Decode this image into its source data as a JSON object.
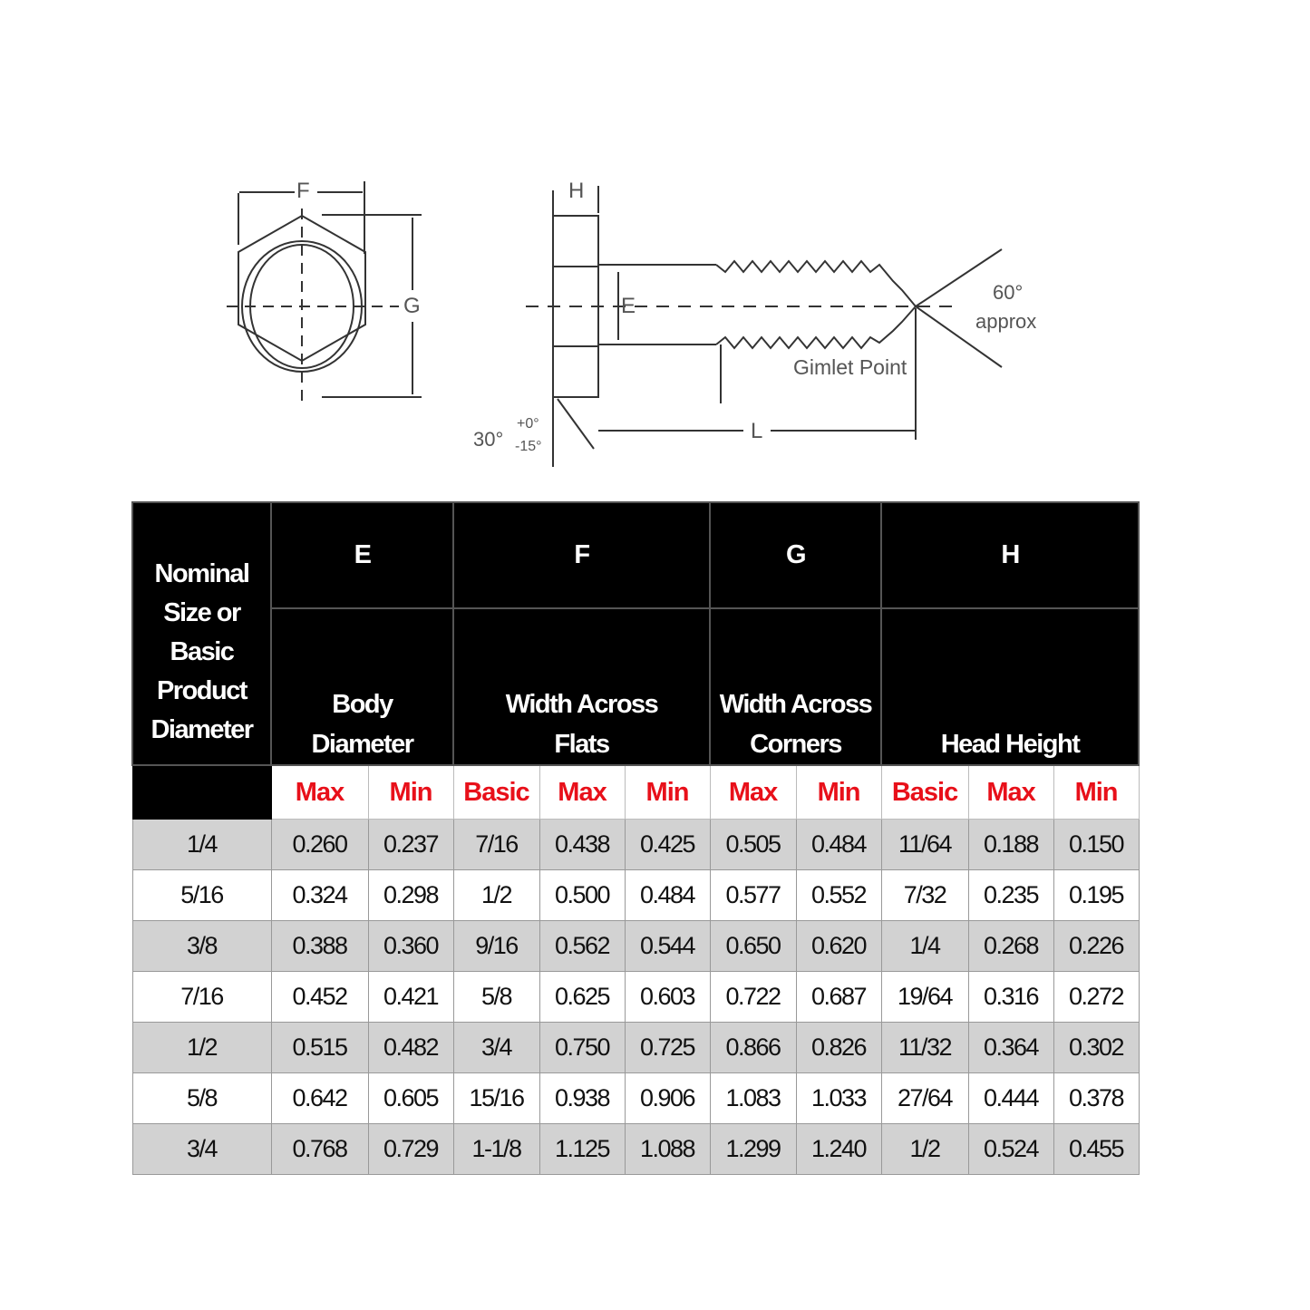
{
  "diagram": {
    "labels": {
      "F": "F",
      "G": "G",
      "H": "H",
      "E": "E",
      "L": "L",
      "angle_60": "60°",
      "approx": "approx",
      "gimlet": "Gimlet Point",
      "angle_30": "30°",
      "tol_plus": "+0°",
      "tol_minus": "-15°"
    }
  },
  "table": {
    "header": {
      "nominal": [
        "Nominal",
        "Size or",
        "Basic",
        "Product",
        "Diameter"
      ],
      "groups": [
        {
          "letter": "E",
          "desc": [
            "Body",
            "Diameter"
          ]
        },
        {
          "letter": "F",
          "desc": [
            "Width Across",
            "Flats"
          ]
        },
        {
          "letter": "G",
          "desc": [
            "Width Across",
            "Corners"
          ]
        },
        {
          "letter": "H",
          "desc": [
            "Head Height"
          ]
        }
      ],
      "sub": [
        "Max",
        "Min",
        "Basic",
        "Max",
        "Min",
        "Max",
        "Min",
        "Basic",
        "Max",
        "Min"
      ]
    },
    "rows": [
      [
        "1/4",
        "0.260",
        "0.237",
        "7/16",
        "0.438",
        "0.425",
        "0.505",
        "0.484",
        "11/64",
        "0.188",
        "0.150"
      ],
      [
        "5/16",
        "0.324",
        "0.298",
        "1/2",
        "0.500",
        "0.484",
        "0.577",
        "0.552",
        "7/32",
        "0.235",
        "0.195"
      ],
      [
        "3/8",
        "0.388",
        "0.360",
        "9/16",
        "0.562",
        "0.544",
        "0.650",
        "0.620",
        "1/4",
        "0.268",
        "0.226"
      ],
      [
        "7/16",
        "0.452",
        "0.421",
        "5/8",
        "0.625",
        "0.603",
        "0.722",
        "0.687",
        "19/64",
        "0.316",
        "0.272"
      ],
      [
        "1/2",
        "0.515",
        "0.482",
        "3/4",
        "0.750",
        "0.725",
        "0.866",
        "0.826",
        "11/32",
        "0.364",
        "0.302"
      ],
      [
        "5/8",
        "0.642",
        "0.605",
        "15/16",
        "0.938",
        "0.906",
        "1.083",
        "1.033",
        "27/64",
        "0.444",
        "0.378"
      ],
      [
        "3/4",
        "0.768",
        "0.729",
        "1-1/8",
        "1.125",
        "1.088",
        "1.299",
        "1.240",
        "1/2",
        "0.524",
        "0.455"
      ]
    ],
    "colors": {
      "header_bg": "#000000",
      "subheader_text": "#e8101a",
      "stripe": "#d2d2d2"
    }
  }
}
